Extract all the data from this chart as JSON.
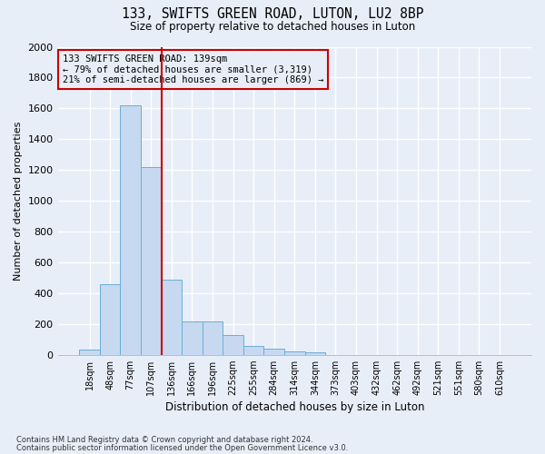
{
  "title": "133, SWIFTS GREEN ROAD, LUTON, LU2 8BP",
  "subtitle": "Size of property relative to detached houses in Luton",
  "xlabel": "Distribution of detached houses by size in Luton",
  "ylabel": "Number of detached properties",
  "footnote1": "Contains HM Land Registry data © Crown copyright and database right 2024.",
  "footnote2": "Contains public sector information licensed under the Open Government Licence v3.0.",
  "bar_labels": [
    "18sqm",
    "48sqm",
    "77sqm",
    "107sqm",
    "136sqm",
    "166sqm",
    "196sqm",
    "225sqm",
    "255sqm",
    "284sqm",
    "314sqm",
    "344sqm",
    "373sqm",
    "403sqm",
    "432sqm",
    "462sqm",
    "492sqm",
    "521sqm",
    "551sqm",
    "580sqm",
    "610sqm"
  ],
  "bar_values": [
    35,
    460,
    1620,
    1220,
    490,
    215,
    215,
    130,
    55,
    40,
    22,
    15,
    0,
    0,
    0,
    0,
    0,
    0,
    0,
    0,
    0
  ],
  "bar_color": "#c6d9f0",
  "bar_edge_color": "#6baed6",
  "ylim": [
    0,
    2000
  ],
  "yticks": [
    0,
    200,
    400,
    600,
    800,
    1000,
    1200,
    1400,
    1600,
    1800,
    2000
  ],
  "vline_index": 4,
  "vline_color": "#cc0000",
  "annotation_text": "133 SWIFTS GREEN ROAD: 139sqm\n← 79% of detached houses are smaller (3,319)\n21% of semi-detached houses are larger (869) →",
  "annotation_box_edgecolor": "#cc0000",
  "background_color": "#e8eef8",
  "plot_bg_color": "#e8eef8",
  "grid_color": "#ffffff",
  "figsize": [
    6.0,
    5.0
  ],
  "dpi": 100
}
